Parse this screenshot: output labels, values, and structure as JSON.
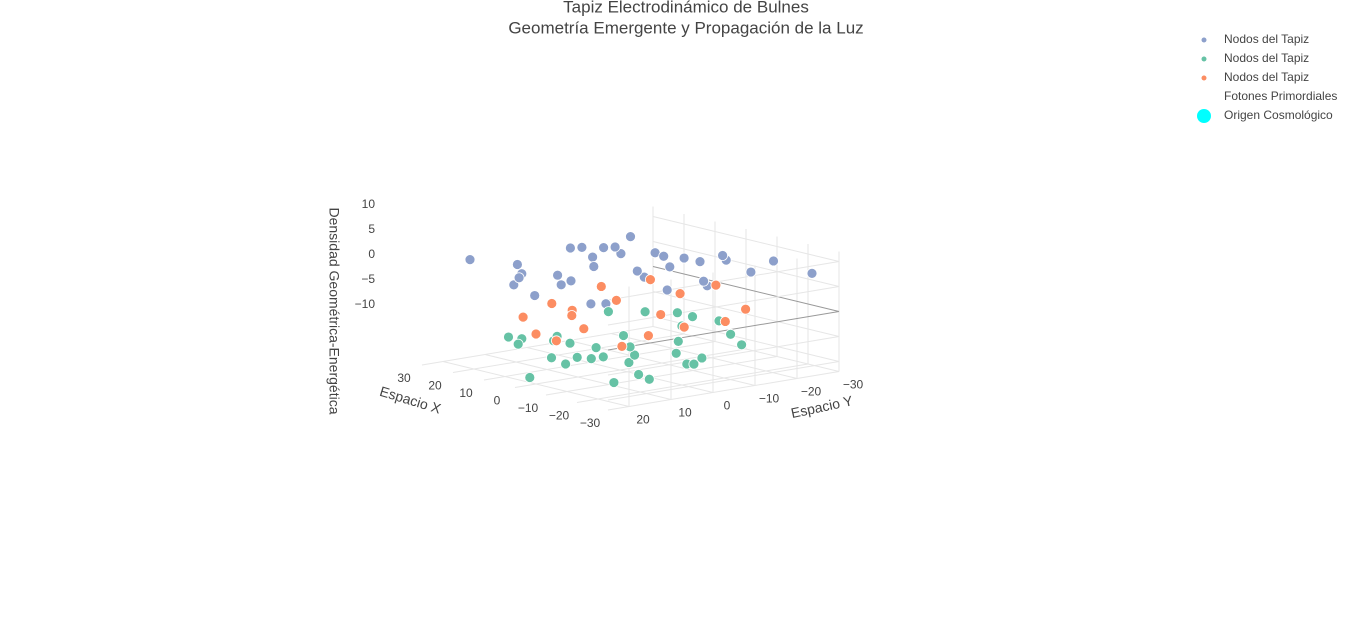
{
  "chart_data": {
    "type": "scatter3d",
    "title": "Tapiz Electrodinámico de Bulnes",
    "subtitle": "Geometría Emergente y Propagación de la Luz",
    "xlabel": "Espacio X",
    "ylabel": "Espacio Y",
    "zlabel": "Densidad Geométrica-Energética",
    "xlim": [
      -30,
      30
    ],
    "ylim": [
      -30,
      25
    ],
    "zlim": [
      -12,
      12
    ],
    "xticks": [
      {
        "value": -30,
        "label": "−30"
      },
      {
        "value": -20,
        "label": "−20"
      },
      {
        "value": -10,
        "label": "−10"
      },
      0,
      10,
      20,
      30
    ],
    "yticks": [
      {
        "value": -30,
        "label": "−30"
      },
      {
        "value": -20,
        "label": "−20"
      },
      {
        "value": -10,
        "label": "−10"
      },
      0,
      10,
      20
    ],
    "zticks": [
      {
        "value": -10,
        "label": "−10"
      },
      {
        "value": -5,
        "label": "−5"
      },
      0,
      5,
      10
    ],
    "grid": true,
    "legend": "top-right",
    "series": [
      {
        "name": "Nodos del Tapiz",
        "color": "#8da0cb",
        "x": [
          -22,
          -18,
          -15,
          -12,
          -9,
          -6,
          -3,
          0,
          3,
          6,
          9,
          12,
          15,
          18,
          21,
          -20,
          -14,
          -8,
          -2,
          4,
          10,
          16,
          22,
          -17,
          -5,
          7,
          19,
          -11,
          1,
          13,
          -24,
          24,
          -7,
          8
        ],
        "y": [
          5,
          -12,
          18,
          -3,
          10,
          -20,
          2,
          14,
          -8,
          20,
          -15,
          6,
          -2,
          12,
          -18,
          -6,
          22,
          -14,
          8,
          -22,
          16,
          0,
          -10,
          -24,
          24,
          -4,
          10,
          4,
          -16,
          -20,
          -28,
          18,
          -26,
          -2
        ],
        "z": [
          8,
          11,
          6,
          10,
          4,
          9,
          12,
          7,
          5,
          11,
          8,
          6,
          10,
          4,
          9,
          7,
          11,
          5,
          12,
          6,
          8,
          10,
          4,
          9,
          7,
          11,
          5,
          10,
          8,
          6,
          7,
          9,
          5,
          11
        ]
      },
      {
        "name": "Nodos del Tapiz",
        "color": "#66c2a5",
        "x": [
          -21,
          -17,
          -14,
          -11,
          -8,
          -5,
          -2,
          1,
          4,
          7,
          10,
          13,
          16,
          19,
          22,
          -19,
          -13,
          -7,
          -1,
          5,
          11,
          17,
          23,
          -16,
          -4,
          8,
          20,
          -10,
          2,
          14,
          -23,
          6,
          -6
        ],
        "y": [
          -4,
          14,
          -16,
          6,
          -10,
          20,
          -2,
          -18,
          10,
          -6,
          16,
          -12,
          4,
          -20,
          8,
          18,
          -8,
          12,
          -14,
          2,
          -22,
          14,
          -2,
          22,
          -26,
          6,
          -12,
          -6,
          20,
          -24,
          10,
          -28,
          0
        ],
        "z": [
          -7,
          -10,
          -5,
          -8,
          -11,
          -6,
          -9,
          -4,
          -10,
          -7,
          -5,
          -11,
          -8,
          -6,
          -9,
          -4,
          -10,
          -7,
          -5,
          -8,
          -11,
          -6,
          -9,
          -4,
          -10,
          -7,
          -5,
          -8,
          -11,
          -6,
          -9,
          -7,
          -12
        ]
      },
      {
        "name": "Nodos del Tapiz",
        "color": "#fc8d62",
        "x": [
          -20,
          -15,
          -10,
          -5,
          0,
          5,
          10,
          15,
          20,
          -18,
          -8,
          2,
          12,
          22,
          -12,
          7,
          -25,
          25
        ],
        "y": [
          8,
          -14,
          16,
          -6,
          20,
          -18,
          4,
          12,
          -22,
          -2,
          -24,
          10,
          -8,
          0,
          24,
          -28,
          18,
          -14
        ],
        "z": [
          -1,
          -2,
          0,
          -1,
          -2,
          0,
          -1,
          -2,
          0,
          -1,
          -2,
          0,
          -1,
          -2,
          -1,
          0,
          -1,
          -1
        ]
      },
      {
        "name": "Fotones Primordiales",
        "x": [],
        "y": [],
        "z": []
      },
      {
        "name": "Origen Cosmológico",
        "color": "#00ffff",
        "x": [],
        "y": [],
        "z": []
      }
    ]
  }
}
